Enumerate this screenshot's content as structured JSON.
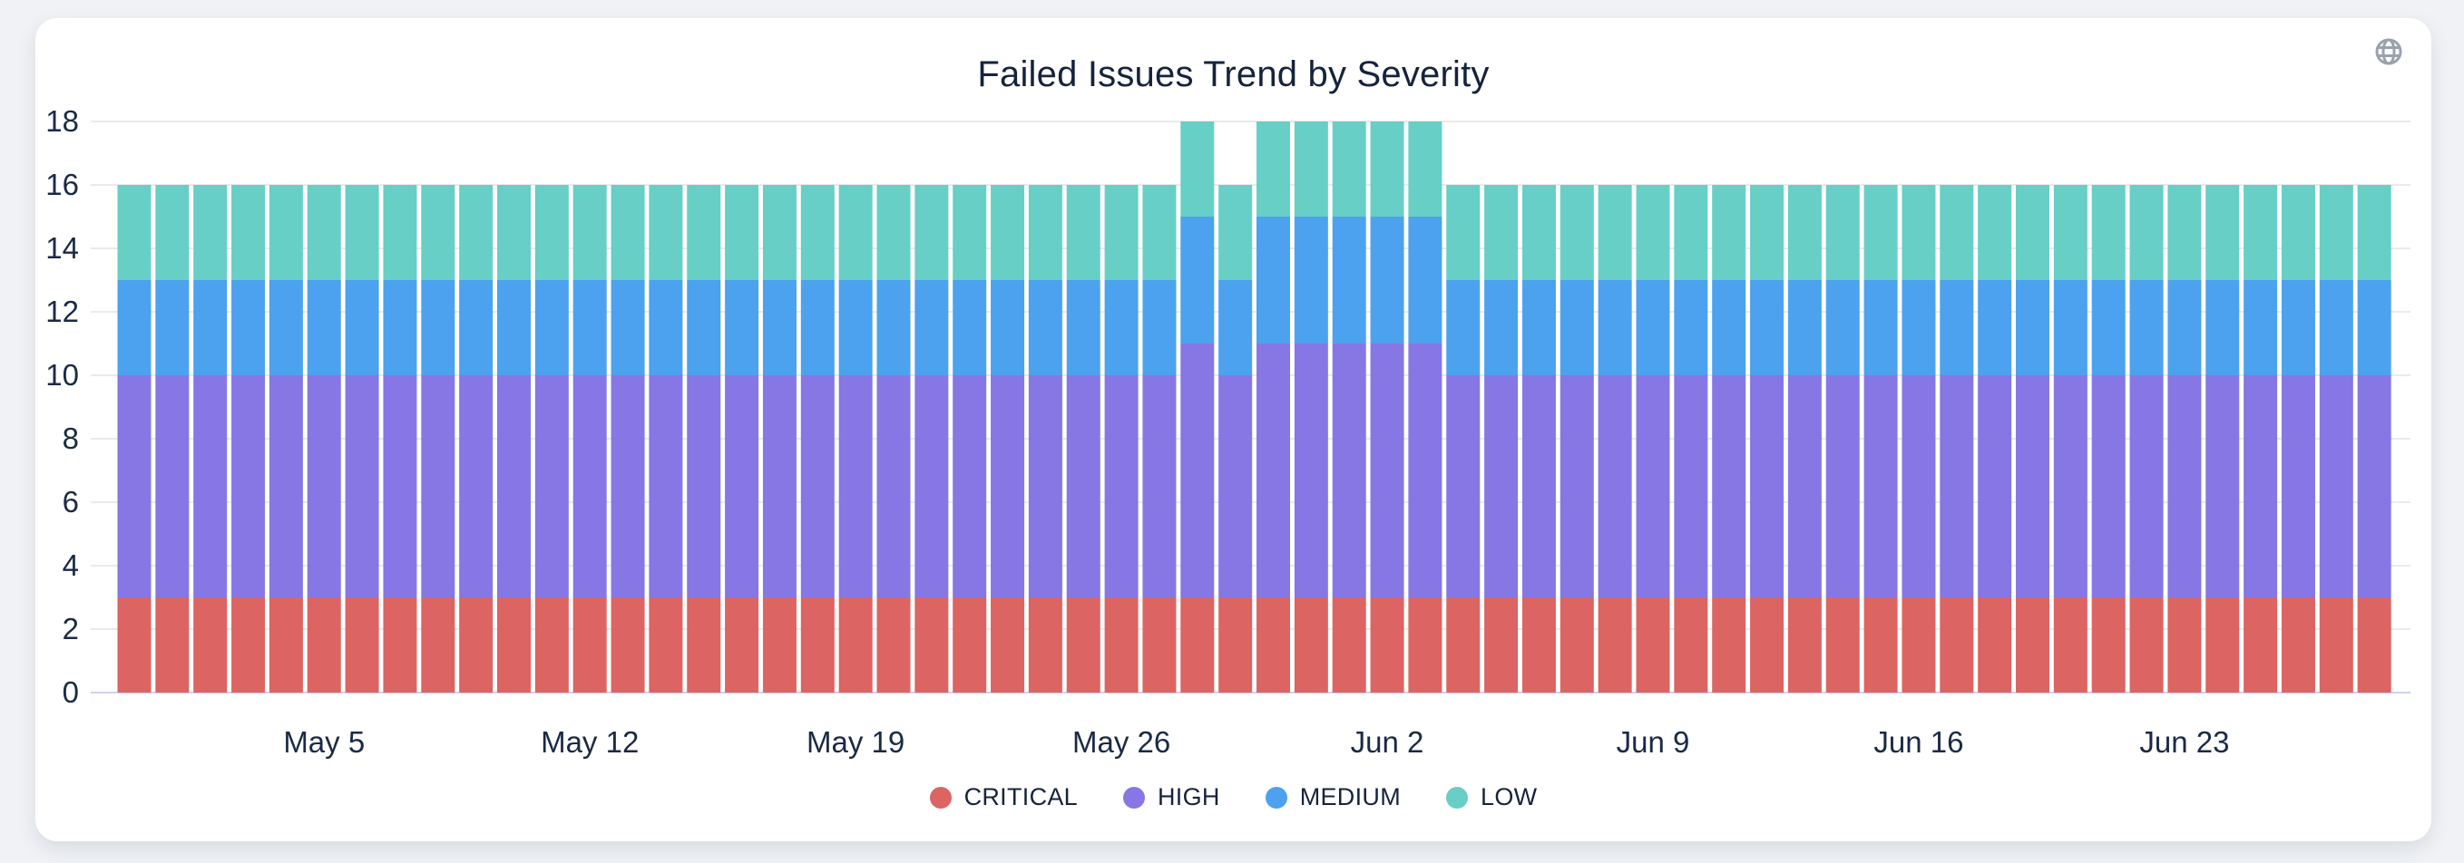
{
  "page": {
    "background_color": "#f0f2f5",
    "card_background_color": "#ffffff"
  },
  "header": {
    "title": "Failed Issues Trend by Severity",
    "globe_icon": "globe-icon",
    "globe_icon_color": "#9aa2ae"
  },
  "theme": {
    "text_color": "#1b2a44",
    "grid_color": "#e9eaec",
    "baseline_color": "#ccd4e8"
  },
  "chart_data": {
    "type": "bar",
    "stacked": true,
    "title": "Failed Issues Trend by Severity",
    "xlabel": "",
    "ylabel": "",
    "ylim": [
      0,
      18
    ],
    "y_ticks": [
      0,
      2,
      4,
      6,
      8,
      10,
      12,
      14,
      16,
      18
    ],
    "grid": true,
    "legend_position": "bottom",
    "categories": [
      "Apr 30",
      "May 1",
      "May 2",
      "May 3",
      "May 4",
      "May 5",
      "May 6",
      "May 7",
      "May 8",
      "May 9",
      "May 10",
      "May 11",
      "May 12",
      "May 13",
      "May 14",
      "May 15",
      "May 16",
      "May 17",
      "May 18",
      "May 19",
      "May 20",
      "May 21",
      "May 22",
      "May 23",
      "May 24",
      "May 25",
      "May 26",
      "May 27",
      "May 28",
      "May 29",
      "May 30",
      "May 31",
      "Jun 1",
      "Jun 2",
      "Jun 3",
      "Jun 4",
      "Jun 5",
      "Jun 6",
      "Jun 7",
      "Jun 8",
      "Jun 9",
      "Jun 10",
      "Jun 11",
      "Jun 12",
      "Jun 13",
      "Jun 14",
      "Jun 15",
      "Jun 16",
      "Jun 17",
      "Jun 18",
      "Jun 19",
      "Jun 20",
      "Jun 21",
      "Jun 22",
      "Jun 23",
      "Jun 24",
      "Jun 25",
      "Jun 26",
      "Jun 27",
      "Jun 28"
    ],
    "x_tick_labels": [
      "May 5",
      "May 12",
      "May 19",
      "May 26",
      "Jun 2",
      "Jun 9",
      "Jun 16",
      "Jun 23"
    ],
    "series": [
      {
        "name": "CRITICAL",
        "color": "#dc6462",
        "values": [
          3,
          3,
          3,
          3,
          3,
          3,
          3,
          3,
          3,
          3,
          3,
          3,
          3,
          3,
          3,
          3,
          3,
          3,
          3,
          3,
          3,
          3,
          3,
          3,
          3,
          3,
          3,
          3,
          3,
          3,
          3,
          3,
          3,
          3,
          3,
          3,
          3,
          3,
          3,
          3,
          3,
          3,
          3,
          3,
          3,
          3,
          3,
          3,
          3,
          3,
          3,
          3,
          3,
          3,
          3,
          3,
          3,
          3,
          3,
          3
        ]
      },
      {
        "name": "HIGH",
        "color": "#8677e4",
        "values": [
          7,
          7,
          7,
          7,
          7,
          7,
          7,
          7,
          7,
          7,
          7,
          7,
          7,
          7,
          7,
          7,
          7,
          7,
          7,
          7,
          7,
          7,
          7,
          7,
          7,
          7,
          7,
          7,
          8,
          7,
          8,
          8,
          8,
          8,
          8,
          7,
          7,
          7,
          7,
          7,
          7,
          7,
          7,
          7,
          7,
          7,
          7,
          7,
          7,
          7,
          7,
          7,
          7,
          7,
          7,
          7,
          7,
          7,
          7,
          7
        ]
      },
      {
        "name": "MEDIUM",
        "color": "#4ca2ee",
        "values": [
          3,
          3,
          3,
          3,
          3,
          3,
          3,
          3,
          3,
          3,
          3,
          3,
          3,
          3,
          3,
          3,
          3,
          3,
          3,
          3,
          3,
          3,
          3,
          3,
          3,
          3,
          3,
          3,
          4,
          3,
          4,
          4,
          4,
          4,
          4,
          3,
          3,
          3,
          3,
          3,
          3,
          3,
          3,
          3,
          3,
          3,
          3,
          3,
          3,
          3,
          3,
          3,
          3,
          3,
          3,
          3,
          3,
          3,
          3,
          3
        ]
      },
      {
        "name": "LOW",
        "color": "#67cfc6",
        "values": [
          3,
          3,
          3,
          3,
          3,
          3,
          3,
          3,
          3,
          3,
          3,
          3,
          3,
          3,
          3,
          3,
          3,
          3,
          3,
          3,
          3,
          3,
          3,
          3,
          3,
          3,
          3,
          3,
          3,
          3,
          3,
          3,
          3,
          3,
          3,
          3,
          3,
          3,
          3,
          3,
          3,
          3,
          3,
          3,
          3,
          3,
          3,
          3,
          3,
          3,
          3,
          3,
          3,
          3,
          3,
          3,
          3,
          3,
          3,
          3
        ]
      }
    ]
  }
}
